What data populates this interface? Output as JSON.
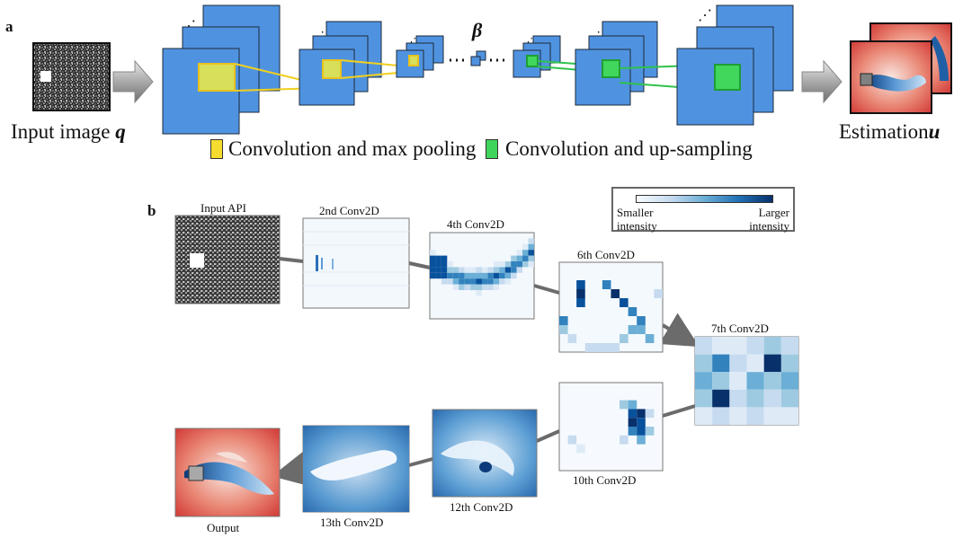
{
  "panel_a": {
    "letter": "a",
    "input_label": "Input image",
    "input_symbol": "q",
    "bottleneck_symbol": "β",
    "output_label": "Estimation",
    "output_symbol": "u",
    "legend": [
      {
        "label": "Convolution and max pooling",
        "color": "#f5dc2e"
      },
      {
        "label": "Convolution and up-sampling",
        "color": "#3fd45c"
      }
    ]
  },
  "panel_b": {
    "letter": "b",
    "intensity_legend": {
      "left_line1": "Smaller",
      "left_line2": "intensity",
      "right_line1": "Larger",
      "right_line2": "intensity"
    },
    "maps": [
      {
        "id": "input",
        "title": "Input API"
      },
      {
        "id": "c2",
        "title": "2nd Conv2D"
      },
      {
        "id": "c4",
        "title": "4th Conv2D"
      },
      {
        "id": "c6",
        "title": "6th Conv2D"
      },
      {
        "id": "c7",
        "title": "7th Conv2D"
      },
      {
        "id": "c10",
        "title": "10th Conv2D"
      },
      {
        "id": "c12",
        "title": "12th Conv2D"
      },
      {
        "id": "c13",
        "title": "13th Conv2D"
      },
      {
        "id": "out",
        "title": "Output"
      }
    ]
  },
  "colors": {
    "layer_blue": "#4f93e0",
    "layer_edge": "#1c2a3a",
    "pool_yellow": "#f5dc2e",
    "upsample_green": "#3fd45c",
    "connector_gray": "#6b6b6b",
    "field_red": "#d63b3b",
    "map_blue_dark": "#08306b"
  }
}
